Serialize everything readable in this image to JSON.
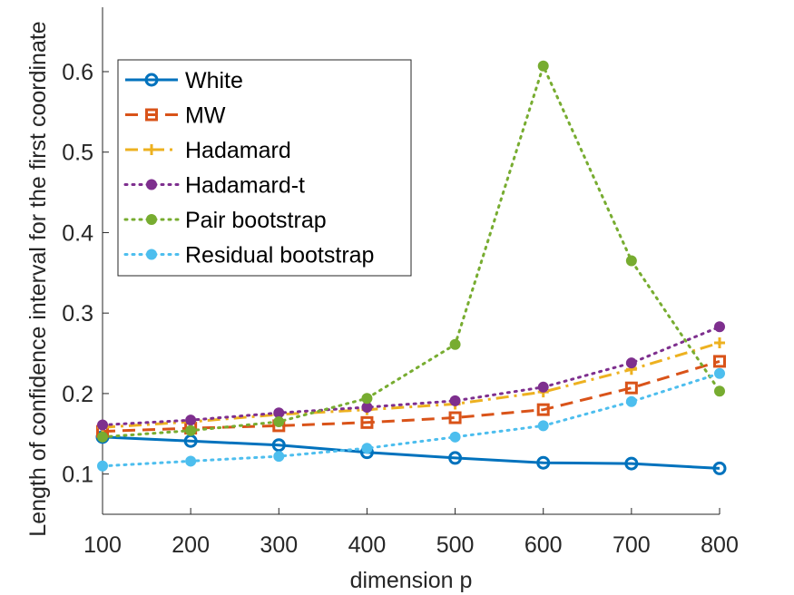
{
  "chart_data": {
    "type": "line",
    "title": "",
    "xlabel": "dimension p",
    "ylabel": "Length of confidence interval for the first coordinate",
    "x": [
      100,
      200,
      300,
      400,
      500,
      600,
      700,
      800
    ],
    "x_ticks": [
      "100",
      "200",
      "300",
      "400",
      "500",
      "600",
      "700",
      "800"
    ],
    "y_ticks": [
      "0.1",
      "0.2",
      "0.3",
      "0.4",
      "0.5",
      "0.6"
    ],
    "xlim": [
      100,
      800
    ],
    "ylim": [
      0.05,
      0.68
    ],
    "grid": false,
    "legend_position": "top-left",
    "series": [
      {
        "name": "White",
        "color": "#0072BD",
        "line": "solid",
        "marker": "circle",
        "values": [
          0.146,
          0.141,
          0.136,
          0.127,
          0.12,
          0.114,
          0.113,
          0.107
        ]
      },
      {
        "name": "MW",
        "color": "#D95319",
        "line": "dashed",
        "marker": "square",
        "values": [
          0.153,
          0.157,
          0.16,
          0.164,
          0.17,
          0.18,
          0.207,
          0.24
        ]
      },
      {
        "name": "Hadamard",
        "color": "#EDB120",
        "line": "dashdot",
        "marker": "plus",
        "values": [
          0.158,
          0.165,
          0.174,
          0.18,
          0.187,
          0.202,
          0.23,
          0.263
        ]
      },
      {
        "name": "Hadamard-t",
        "color": "#7E2F8E",
        "line": "dotted",
        "marker": "dot",
        "values": [
          0.161,
          0.167,
          0.176,
          0.183,
          0.191,
          0.208,
          0.238,
          0.283
        ]
      },
      {
        "name": "Pair bootstrap",
        "color": "#77AC30",
        "line": "dotted",
        "marker": "dot",
        "values": [
          0.146,
          0.154,
          0.165,
          0.194,
          0.261,
          0.607,
          0.365,
          0.203
        ]
      },
      {
        "name": "Residual bootstrap",
        "color": "#4DBEEE",
        "line": "dotted",
        "marker": "dot",
        "values": [
          0.11,
          0.116,
          0.122,
          0.132,
          0.146,
          0.16,
          0.19,
          0.225
        ]
      }
    ]
  }
}
